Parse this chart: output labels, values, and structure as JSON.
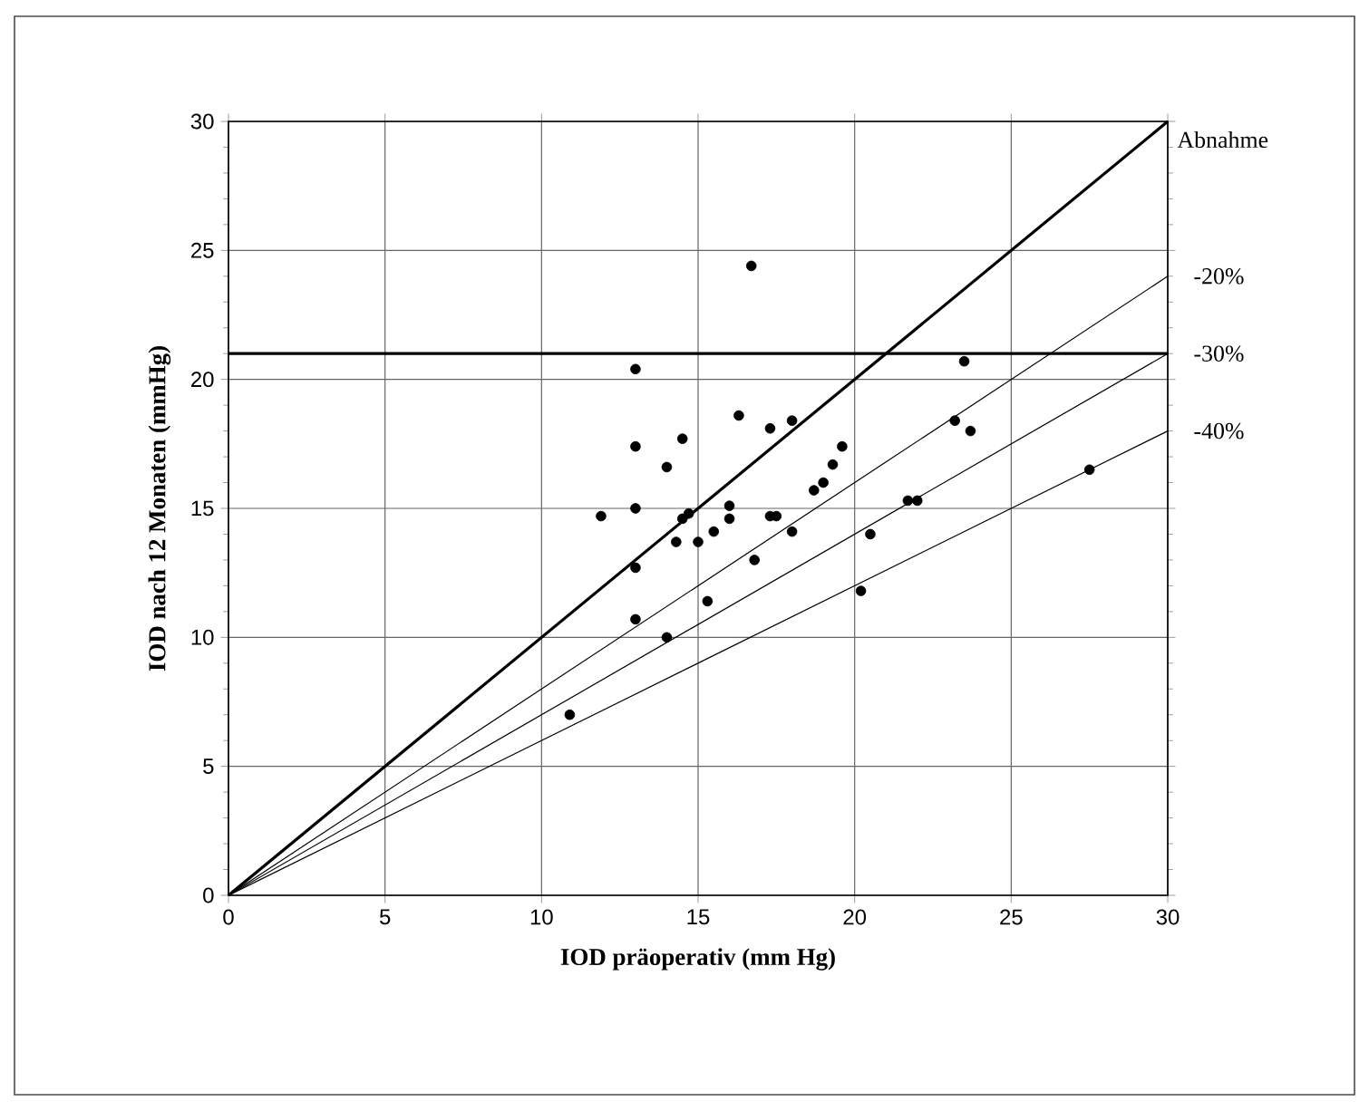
{
  "chart_data": {
    "type": "scatter",
    "xlabel": "IOD präoperativ (mm Hg)",
    "ylabel": "IOD nach 12 Monaten (mmHg)",
    "xlim": [
      0,
      30
    ],
    "ylim": [
      0,
      30
    ],
    "xticks": [
      0,
      5,
      10,
      15,
      20,
      25,
      30
    ],
    "yticks": [
      0,
      5,
      10,
      15,
      20,
      25,
      30
    ],
    "grid": true,
    "legend": "right",
    "ref_lines": [
      {
        "axis": "y",
        "value": 21,
        "color": "#000000"
      }
    ],
    "series": [
      {
        "type": "scatter",
        "color": "#000000",
        "marker": "circle",
        "x": [
          16.7,
          13,
          16.3,
          17.3,
          18.0,
          13,
          14.5,
          14.0,
          19.6,
          19.3,
          19.0,
          18.7,
          11.9,
          13,
          14.5,
          14.7,
          16,
          16,
          17.3,
          17.5,
          14.3,
          15.0,
          15.5,
          18,
          16.8,
          13,
          15.3,
          13,
          14.0,
          10.9,
          23.5,
          23.2,
          23.7,
          27.5,
          21.7,
          22.0,
          20.5,
          20.2
        ],
        "values": [
          24.4,
          20.4,
          18.6,
          18.1,
          18.4,
          17.4,
          17.7,
          16.6,
          17.4,
          16.7,
          16.0,
          15.7,
          14.7,
          15.0,
          14.6,
          14.8,
          15.1,
          14.6,
          14.7,
          14.7,
          13.7,
          13.7,
          14.1,
          14.1,
          13.0,
          12.7,
          11.4,
          10.7,
          10.0,
          7.0,
          20.7,
          18.4,
          18.0,
          16.5,
          15.3,
          15.3,
          14.0,
          11.8
        ]
      },
      {
        "type": "line",
        "name": "Abnahme",
        "color": "#000000",
        "x": [
          0,
          30
        ],
        "values": [
          0,
          30
        ]
      },
      {
        "type": "line",
        "name": "-20%",
        "color": "#000000",
        "x": [
          0,
          30
        ],
        "values": [
          0,
          24
        ]
      },
      {
        "type": "line",
        "name": "-30%",
        "color": "#000000",
        "x": [
          0,
          30
        ],
        "values": [
          0,
          21
        ]
      },
      {
        "type": "line",
        "name": "-40%",
        "color": "#000000",
        "x": [
          0,
          30
        ],
        "values": [
          0,
          18
        ]
      }
    ]
  }
}
